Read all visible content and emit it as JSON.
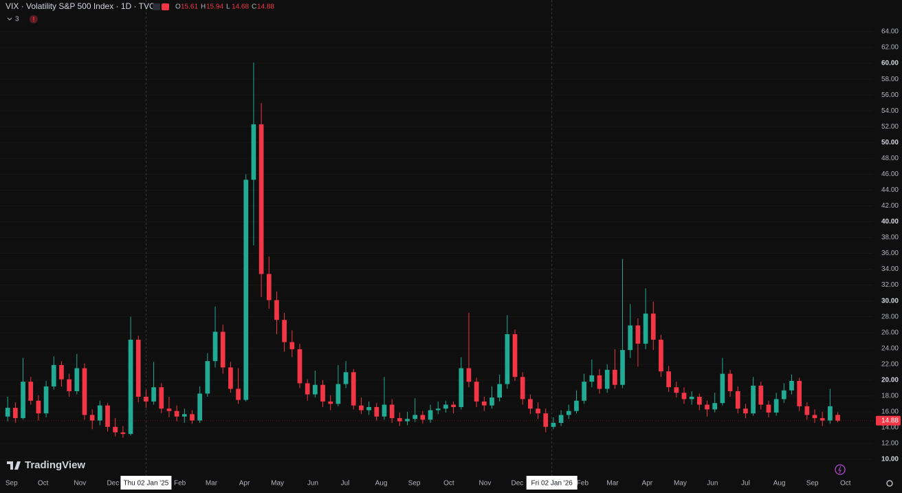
{
  "chart_data": {
    "type": "candlestick",
    "title": "VIX · Volatility S&P 500 Index · 1D · TVC",
    "ohlc_labels": [
      "O",
      "H",
      "L",
      "C"
    ],
    "indicators_toggle": "3",
    "watermark": "TradingView",
    "up_color": "#22ab94",
    "down_color": "#f23645",
    "grid": true,
    "xlim": [
      -1,
      112.6
    ],
    "xticks": [
      {
        "value": 0.5,
        "label": "Sep"
      },
      {
        "value": 4.6,
        "label": "Oct"
      },
      {
        "value": 9.4,
        "label": "Nov"
      },
      {
        "value": 13.7,
        "label": "Dec"
      },
      {
        "value": 18.0,
        "label": "Thu 02 Jan '25"
      },
      {
        "value": 22.4,
        "label": "Feb"
      },
      {
        "value": 26.5,
        "label": "Mar"
      },
      {
        "value": 30.8,
        "label": "Apr"
      },
      {
        "value": 35.1,
        "label": "May"
      },
      {
        "value": 39.7,
        "label": "Jun"
      },
      {
        "value": 43.9,
        "label": "Jul"
      },
      {
        "value": 48.6,
        "label": "Aug"
      },
      {
        "value": 52.9,
        "label": "Sep"
      },
      {
        "value": 57.4,
        "label": "Oct"
      },
      {
        "value": 62.1,
        "label": "Nov"
      },
      {
        "value": 66.3,
        "label": "Dec"
      },
      {
        "value": 70.8,
        "label": "Fri 02 Jan '26"
      },
      {
        "value": 74.8,
        "label": "Feb"
      },
      {
        "value": 78.7,
        "label": "Mar"
      },
      {
        "value": 83.2,
        "label": "Apr"
      },
      {
        "value": 87.5,
        "label": "May"
      },
      {
        "value": 91.7,
        "label": "Jun"
      },
      {
        "value": 96.0,
        "label": "Jul"
      },
      {
        "value": 100.4,
        "label": "Aug"
      },
      {
        "value": 104.7,
        "label": "Sep"
      },
      {
        "value": 109.0,
        "label": "Oct"
      }
    ],
    "ylim": [
      10,
      64
    ],
    "yticks": [
      {
        "value": 10,
        "label": "10.00"
      },
      {
        "value": 12,
        "label": "12.00"
      },
      {
        "value": 14,
        "label": "14.00"
      },
      {
        "value": 16,
        "label": "16.00"
      },
      {
        "value": 18,
        "label": "18.00"
      },
      {
        "value": 20,
        "label": "20.00"
      },
      {
        "value": 22,
        "label": "22.00"
      },
      {
        "value": 24,
        "label": "24.00"
      },
      {
        "value": 26,
        "label": "26.00"
      },
      {
        "value": 28,
        "label": "28.00"
      },
      {
        "value": 30,
        "label": "30.00"
      },
      {
        "value": 32,
        "label": "32.00"
      },
      {
        "value": 34,
        "label": "34.00"
      },
      {
        "value": 36,
        "label": "36.00"
      },
      {
        "value": 38,
        "label": "38.00"
      },
      {
        "value": 40,
        "label": "40.00"
      },
      {
        "value": 42,
        "label": "42.00"
      },
      {
        "value": 44,
        "label": "44.00"
      },
      {
        "value": 46,
        "label": "46.00"
      },
      {
        "value": 48,
        "label": "48.00"
      },
      {
        "value": 50,
        "label": "50.00"
      },
      {
        "value": 52,
        "label": "52.00"
      },
      {
        "value": 54,
        "label": "54.00"
      },
      {
        "value": 56,
        "label": "56.00"
      },
      {
        "value": 58,
        "label": "58.00"
      },
      {
        "value": 60,
        "label": "60.00"
      },
      {
        "value": 62,
        "label": "62.00"
      },
      {
        "value": 64,
        "label": "64.00"
      }
    ],
    "open": [
      15.4,
      16.5,
      15.2,
      19.8,
      17.4,
      15.8,
      19.2,
      21.9,
      20.1,
      18.6,
      21.5,
      15.6,
      14.9,
      16.8,
      14.1,
      13.4,
      13.2,
      25.1,
      17.9,
      17.3,
      19.1,
      16.4,
      16.1,
      15.4,
      15.7,
      14.9,
      18.3,
      22.4,
      26.1,
      21.6,
      18.9,
      17.5,
      45.3,
      52.3,
      33.4,
      30.1,
      27.6,
      24.8,
      23.9,
      19.6,
      18.2,
      19.4,
      17.3,
      17.0,
      19.5,
      21.0,
      16.8,
      16.2,
      16.6,
      15.4,
      16.9,
      15.2,
      14.8,
      15.1,
      15.6,
      15.0,
      16.2,
      16.4,
      16.9,
      16.6,
      21.5,
      19.8,
      17.3,
      16.8,
      17.8,
      19.5,
      25.8,
      20.4,
      17.6,
      16.4,
      15.8,
      14.1,
      14.6,
      15.6,
      16.1,
      17.4,
      19.8,
      20.6,
      18.9,
      21.3,
      19.4,
      23.8,
      26.9,
      24.6,
      28.4,
      25.1,
      21.1,
      19.1,
      18.4,
      17.6,
      17.9,
      16.9,
      16.3,
      17.1,
      20.8,
      18.6,
      16.4,
      15.8,
      19.3,
      16.9,
      15.9,
      17.6,
      18.7,
      19.9,
      16.7,
      15.6,
      15.2,
      14.9,
      15.61
    ],
    "high": [
      17.9,
      17.2,
      22.8,
      20.4,
      18.1,
      19.9,
      23.0,
      22.4,
      20.8,
      23.3,
      22.1,
      16.3,
      17.4,
      17.1,
      15.2,
      14.2,
      28.0,
      25.6,
      18.8,
      22.3,
      19.6,
      17.9,
      16.8,
      16.4,
      16.2,
      19.2,
      23.4,
      29.3,
      27.0,
      22.3,
      21.5,
      46.0,
      60.1,
      55.0,
      35.6,
      31.2,
      28.5,
      26.3,
      24.6,
      20.1,
      21.2,
      20.0,
      18.1,
      21.9,
      22.4,
      21.4,
      17.8,
      17.3,
      17.1,
      20.4,
      17.6,
      15.9,
      16.0,
      17.7,
      16.1,
      16.9,
      17.3,
      17.4,
      17.3,
      22.9,
      28.5,
      20.3,
      17.9,
      19.2,
      20.7,
      28.2,
      26.4,
      21.0,
      18.2,
      17.2,
      16.4,
      15.3,
      16.2,
      16.9,
      18.7,
      20.8,
      22.6,
      21.4,
      22.0,
      23.9,
      35.3,
      29.6,
      27.8,
      31.6,
      29.9,
      25.7,
      21.8,
      19.8,
      19.1,
      18.6,
      18.3,
      17.4,
      18.4,
      22.8,
      21.3,
      19.2,
      17.0,
      20.4,
      19.8,
      17.4,
      18.4,
      19.6,
      20.7,
      20.3,
      17.2,
      16.3,
      16.0,
      18.9,
      15.94
    ],
    "low": [
      14.8,
      14.6,
      15.0,
      16.9,
      14.9,
      15.3,
      18.8,
      19.2,
      17.9,
      18.2,
      15.0,
      13.8,
      14.3,
      13.5,
      12.9,
      12.7,
      13.0,
      17.2,
      16.5,
      16.9,
      15.8,
      15.3,
      14.8,
      14.6,
      14.5,
      14.6,
      17.9,
      21.6,
      20.8,
      18.4,
      17.0,
      17.3,
      37.0,
      30.5,
      29.0,
      25.8,
      23.6,
      22.9,
      19.0,
      17.4,
      17.8,
      16.6,
      16.2,
      16.7,
      19.0,
      16.3,
      15.7,
      15.6,
      14.9,
      15.0,
      14.6,
      14.2,
      14.3,
      14.7,
      14.5,
      14.6,
      15.7,
      15.9,
      15.8,
      16.3,
      19.1,
      16.6,
      16.1,
      16.4,
      17.3,
      18.9,
      19.9,
      16.9,
      15.7,
      15.1,
      13.4,
      13.8,
      14.2,
      15.1,
      15.8,
      17.0,
      19.1,
      18.3,
      18.4,
      18.9,
      19.0,
      22.8,
      21.7,
      23.9,
      23.8,
      20.4,
      18.5,
      17.8,
      17.0,
      16.9,
      16.2,
      15.4,
      15.9,
      16.8,
      17.9,
      15.8,
      15.2,
      15.5,
      16.3,
      15.3,
      15.5,
      17.1,
      18.2,
      16.1,
      15.0,
      14.6,
      14.2,
      14.5,
      14.68
    ],
    "close": [
      16.5,
      15.2,
      19.8,
      17.4,
      15.8,
      19.2,
      21.9,
      20.1,
      18.6,
      21.5,
      15.6,
      14.9,
      16.8,
      14.1,
      13.4,
      13.2,
      25.1,
      17.9,
      17.3,
      19.1,
      16.4,
      16.1,
      15.4,
      15.7,
      14.9,
      18.3,
      22.4,
      26.1,
      21.6,
      18.9,
      17.5,
      45.3,
      52.3,
      33.4,
      30.1,
      27.6,
      24.8,
      23.9,
      19.6,
      18.2,
      19.4,
      17.3,
      17.0,
      19.5,
      21.0,
      16.8,
      16.2,
      16.6,
      15.4,
      16.9,
      15.2,
      14.8,
      15.1,
      15.6,
      15.0,
      16.2,
      16.4,
      16.9,
      16.6,
      21.5,
      19.8,
      17.3,
      16.8,
      17.8,
      19.5,
      25.8,
      20.4,
      17.6,
      16.4,
      15.8,
      14.1,
      14.6,
      15.6,
      16.1,
      17.4,
      19.8,
      20.6,
      18.9,
      21.3,
      19.4,
      23.8,
      26.9,
      24.6,
      28.4,
      25.1,
      21.1,
      19.1,
      18.4,
      17.6,
      17.9,
      16.9,
      16.3,
      17.1,
      20.8,
      18.6,
      16.4,
      15.8,
      19.3,
      16.9,
      15.9,
      17.6,
      18.7,
      19.9,
      16.7,
      15.6,
      15.2,
      14.9,
      16.7,
      14.88
    ]
  }
}
